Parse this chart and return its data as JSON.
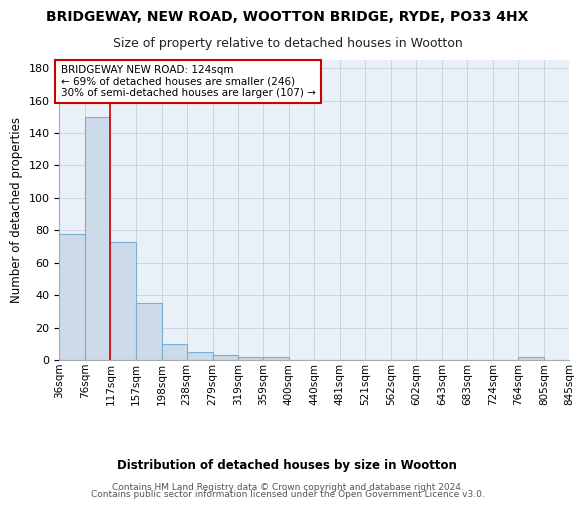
{
  "title1": "BRIDGEWAY, NEW ROAD, WOOTTON BRIDGE, RYDE, PO33 4HX",
  "title2": "Size of property relative to detached houses in Wootton",
  "xlabel": "Distribution of detached houses by size in Wootton",
  "ylabel": "Number of detached properties",
  "footer1": "Contains HM Land Registry data © Crown copyright and database right 2024.",
  "footer2": "Contains public sector information licensed under the Open Government Licence v3.0.",
  "bin_labels": [
    "36sqm",
    "76sqm",
    "117sqm",
    "157sqm",
    "198sqm",
    "238sqm",
    "279sqm",
    "319sqm",
    "359sqm",
    "400sqm",
    "440sqm",
    "481sqm",
    "521sqm",
    "562sqm",
    "602sqm",
    "643sqm",
    "683sqm",
    "724sqm",
    "764sqm",
    "805sqm",
    "845sqm"
  ],
  "bar_heights": [
    78,
    150,
    73,
    35,
    10,
    5,
    3,
    2,
    2,
    0,
    0,
    0,
    0,
    0,
    0,
    0,
    0,
    0,
    2,
    0,
    0
  ],
  "bin_edges": [
    36,
    76,
    117,
    157,
    198,
    238,
    279,
    319,
    359,
    400,
    440,
    481,
    521,
    562,
    602,
    643,
    683,
    724,
    764,
    805,
    845
  ],
  "bar_color": "#cddaea",
  "bar_edgecolor": "#7aafd4",
  "grid_color": "#c8d4e4",
  "background_color": "#eaf0f8",
  "red_line_x": 117,
  "annotation_text": "BRIDGEWAY NEW ROAD: 124sqm\n← 69% of detached houses are smaller (246)\n30% of semi-detached houses are larger (107) →",
  "annotation_box_color": "white",
  "annotation_box_edgecolor": "#cc0000",
  "ylim": [
    0,
    185
  ],
  "yticks": [
    0,
    20,
    40,
    60,
    80,
    100,
    120,
    140,
    160,
    180
  ],
  "title1_fontsize": 10,
  "title2_fontsize": 9,
  "xlabel_fontsize": 8.5,
  "ylabel_fontsize": 8.5,
  "footer_fontsize": 6.5,
  "tick_fontsize": 8,
  "xtick_fontsize": 7.5
}
